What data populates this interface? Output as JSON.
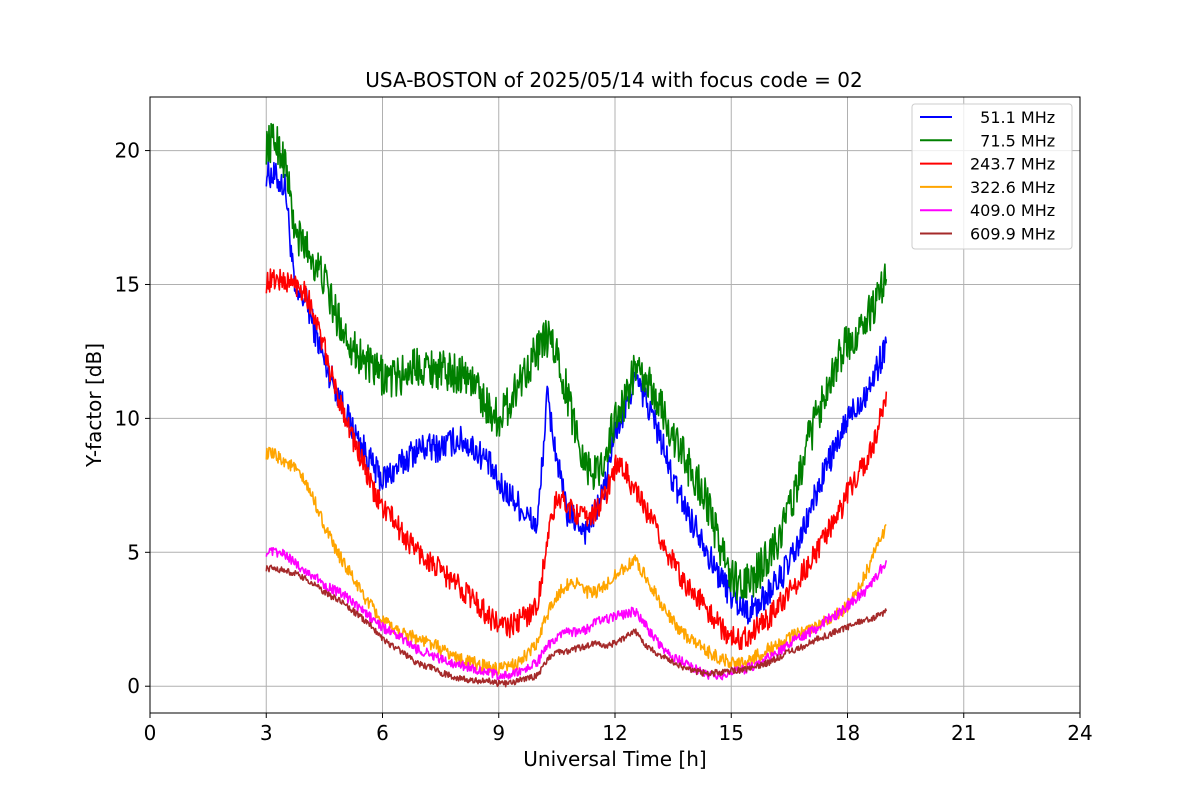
{
  "chart_data": {
    "type": "line",
    "title": "USA-BOSTON of 2025/05/14 with focus code = 02",
    "xlabel": "Universal Time [h]",
    "ylabel": "Y-factor [dB]",
    "xlim": [
      0,
      24
    ],
    "ylim": [
      -1,
      22
    ],
    "xticks": [
      0,
      3,
      6,
      9,
      12,
      15,
      18,
      21,
      24
    ],
    "xtick_labels": [
      "0",
      "3",
      "6",
      "9",
      "12",
      "15",
      "18",
      "21",
      "24"
    ],
    "yticks": [
      0,
      5,
      10,
      15,
      20
    ],
    "ytick_labels": [
      "0",
      "5",
      "10",
      "15",
      "20"
    ],
    "grid": true,
    "legend_position": "top-right",
    "series": [
      {
        "name": "  51.1 MHz",
        "color": "#0000ff",
        "x": [
          3.0,
          3.25,
          3.5,
          3.75,
          4.0,
          4.25,
          4.5,
          4.75,
          5.0,
          5.25,
          5.5,
          5.75,
          6.0,
          6.25,
          6.5,
          6.75,
          7.0,
          7.25,
          7.5,
          7.75,
          8.0,
          8.25,
          8.5,
          8.75,
          9.0,
          9.25,
          9.5,
          9.75,
          10.0,
          10.25,
          10.5,
          10.75,
          11.0,
          11.25,
          11.5,
          11.75,
          12.0,
          12.25,
          12.5,
          12.75,
          13.0,
          13.25,
          13.5,
          13.75,
          14.0,
          14.25,
          14.5,
          14.75,
          15.0,
          15.25,
          15.5,
          15.75,
          16.0,
          16.25,
          16.5,
          16.75,
          17.0,
          17.25,
          17.5,
          17.75,
          18.0,
          18.25,
          18.5,
          18.75,
          19.0
        ],
        "y": [
          19.2,
          19.0,
          18.6,
          14.5,
          14.5,
          13.3,
          12.1,
          11.3,
          10.4,
          9.5,
          8.9,
          8.2,
          7.7,
          8.0,
          8.3,
          8.7,
          8.9,
          8.9,
          8.9,
          9.1,
          9.2,
          9.0,
          8.7,
          8.3,
          7.5,
          7.2,
          6.8,
          6.3,
          6.0,
          10.8,
          8.5,
          6.5,
          6.2,
          5.8,
          6.5,
          7.5,
          9.5,
          10.2,
          11.5,
          10.8,
          10.0,
          8.9,
          7.6,
          6.9,
          6.1,
          5.6,
          4.6,
          4.0,
          3.4,
          3.0,
          2.8,
          3.1,
          3.6,
          4.0,
          4.6,
          5.3,
          6.4,
          7.4,
          8.4,
          9.0,
          10.0,
          10.5,
          11.0,
          11.8,
          12.8
        ]
      },
      {
        "name": "  71.5 MHz",
        "color": "#008000",
        "x": [
          3.0,
          3.25,
          3.5,
          3.75,
          4.0,
          4.25,
          4.5,
          4.75,
          5.0,
          5.25,
          5.5,
          5.75,
          6.0,
          6.25,
          6.5,
          6.75,
          7.0,
          7.25,
          7.5,
          7.75,
          8.0,
          8.25,
          8.5,
          8.75,
          9.0,
          9.25,
          9.5,
          9.75,
          10.0,
          10.25,
          10.5,
          10.75,
          11.0,
          11.25,
          11.5,
          11.75,
          12.0,
          12.25,
          12.5,
          12.75,
          13.0,
          13.25,
          13.5,
          13.75,
          14.0,
          14.25,
          14.5,
          14.75,
          15.0,
          15.25,
          15.5,
          15.75,
          16.0,
          16.25,
          16.5,
          16.75,
          17.0,
          17.25,
          17.5,
          17.75,
          18.0,
          18.25,
          18.5,
          18.75,
          19.0
        ],
        "y": [
          20.2,
          20.4,
          19.5,
          16.8,
          16.5,
          15.8,
          15.2,
          14.0,
          13.3,
          12.6,
          12.2,
          11.8,
          11.6,
          11.5,
          11.6,
          11.9,
          12.0,
          11.9,
          11.8,
          11.7,
          11.7,
          11.5,
          11.0,
          10.3,
          10.0,
          10.5,
          11.3,
          12.0,
          12.5,
          13.0,
          12.4,
          11.0,
          9.5,
          8.3,
          7.9,
          8.6,
          10.0,
          10.6,
          11.8,
          11.4,
          11.0,
          10.2,
          9.3,
          8.6,
          7.9,
          7.4,
          6.2,
          5.1,
          4.1,
          3.7,
          3.9,
          4.4,
          5.0,
          5.6,
          6.7,
          7.7,
          9.2,
          10.2,
          11.4,
          12.2,
          12.8,
          13.1,
          13.8,
          14.3,
          15.2
        ]
      },
      {
        "name": "243.7 MHz",
        "color": "#ff0000",
        "x": [
          3.0,
          3.25,
          3.5,
          3.75,
          4.0,
          4.25,
          4.5,
          4.75,
          5.0,
          5.25,
          5.5,
          5.75,
          6.0,
          6.25,
          6.5,
          6.75,
          7.0,
          7.25,
          7.5,
          7.75,
          8.0,
          8.25,
          8.5,
          8.75,
          9.0,
          9.25,
          9.5,
          9.75,
          10.0,
          10.25,
          10.5,
          10.75,
          11.0,
          11.25,
          11.5,
          11.75,
          12.0,
          12.25,
          12.5,
          12.75,
          13.0,
          13.25,
          13.5,
          13.75,
          14.0,
          14.25,
          14.5,
          14.75,
          15.0,
          15.25,
          15.5,
          15.75,
          16.0,
          16.25,
          16.5,
          16.75,
          17.0,
          17.25,
          17.5,
          17.75,
          18.0,
          18.25,
          18.5,
          18.75,
          19.0
        ],
        "y": [
          15.1,
          15.2,
          15.1,
          15.0,
          14.8,
          13.8,
          12.6,
          11.2,
          10.3,
          9.2,
          8.3,
          7.3,
          6.7,
          6.3,
          5.7,
          5.3,
          4.9,
          4.6,
          4.3,
          4.0,
          3.7,
          3.4,
          3.0,
          2.6,
          2.3,
          2.2,
          2.4,
          2.7,
          3.0,
          5.5,
          7.0,
          6.8,
          6.5,
          6.2,
          6.6,
          7.1,
          8.2,
          8.1,
          7.3,
          6.7,
          6.0,
          5.3,
          4.6,
          4.0,
          3.5,
          3.1,
          2.6,
          2.2,
          1.8,
          1.8,
          2.0,
          2.3,
          2.6,
          3.1,
          3.5,
          4.0,
          4.6,
          5.1,
          5.8,
          6.3,
          7.2,
          7.8,
          8.5,
          9.4,
          11.0
        ]
      },
      {
        "name": "322.6 MHz",
        "color": "#ffa500",
        "x": [
          3.0,
          3.25,
          3.5,
          3.75,
          4.0,
          4.25,
          4.5,
          4.75,
          5.0,
          5.25,
          5.5,
          5.75,
          6.0,
          6.25,
          6.5,
          6.75,
          7.0,
          7.25,
          7.5,
          7.75,
          8.0,
          8.25,
          8.5,
          8.75,
          9.0,
          9.25,
          9.5,
          9.75,
          10.0,
          10.25,
          10.5,
          10.75,
          11.0,
          11.25,
          11.5,
          11.75,
          12.0,
          12.25,
          12.5,
          12.75,
          13.0,
          13.25,
          13.5,
          13.75,
          14.0,
          14.25,
          14.5,
          14.75,
          15.0,
          15.25,
          15.5,
          15.75,
          16.0,
          16.25,
          16.5,
          16.75,
          17.0,
          17.25,
          17.5,
          17.75,
          18.0,
          18.25,
          18.5,
          18.75,
          19.0
        ],
        "y": [
          8.7,
          8.6,
          8.4,
          8.1,
          7.6,
          6.9,
          6.0,
          5.2,
          4.6,
          4.0,
          3.4,
          2.9,
          2.4,
          2.2,
          2.0,
          1.9,
          1.7,
          1.6,
          1.4,
          1.2,
          1.0,
          0.9,
          0.8,
          0.7,
          0.6,
          0.7,
          0.9,
          1.2,
          1.6,
          2.7,
          3.4,
          3.8,
          3.9,
          3.5,
          3.5,
          3.7,
          4.2,
          4.4,
          4.7,
          4.2,
          3.6,
          2.9,
          2.4,
          2.0,
          1.7,
          1.4,
          1.2,
          1.0,
          0.9,
          0.9,
          1.0,
          1.2,
          1.4,
          1.6,
          1.8,
          2.0,
          2.2,
          2.3,
          2.5,
          2.7,
          3.0,
          3.6,
          4.3,
          5.2,
          6.0
        ]
      },
      {
        "name": "409.0 MHz",
        "color": "#ff00ff",
        "x": [
          3.0,
          3.25,
          3.5,
          3.75,
          4.0,
          4.25,
          4.5,
          4.75,
          5.0,
          5.25,
          5.5,
          5.75,
          6.0,
          6.25,
          6.5,
          6.75,
          7.0,
          7.25,
          7.5,
          7.75,
          8.0,
          8.25,
          8.5,
          8.75,
          9.0,
          9.25,
          9.5,
          9.75,
          10.0,
          10.25,
          10.5,
          10.75,
          11.0,
          11.25,
          11.5,
          11.75,
          12.0,
          12.25,
          12.5,
          12.75,
          13.0,
          13.25,
          13.5,
          13.75,
          14.0,
          14.25,
          14.5,
          14.75,
          15.0,
          15.25,
          15.5,
          15.75,
          16.0,
          16.25,
          16.5,
          16.75,
          17.0,
          17.25,
          17.5,
          17.75,
          18.0,
          18.25,
          18.5,
          18.75,
          19.0
        ],
        "y": [
          5.0,
          5.0,
          4.9,
          4.6,
          4.3,
          4.1,
          3.8,
          3.6,
          3.4,
          3.1,
          2.8,
          2.5,
          2.2,
          2.0,
          1.8,
          1.5,
          1.3,
          1.2,
          1.0,
          0.9,
          0.8,
          0.7,
          0.6,
          0.5,
          0.4,
          0.4,
          0.5,
          0.7,
          0.9,
          1.5,
          1.8,
          2.0,
          2.0,
          2.1,
          2.4,
          2.5,
          2.6,
          2.7,
          2.8,
          2.4,
          1.8,
          1.4,
          1.1,
          0.9,
          0.7,
          0.5,
          0.4,
          0.4,
          0.5,
          0.6,
          0.7,
          0.9,
          1.1,
          1.3,
          1.6,
          1.8,
          2.0,
          2.2,
          2.5,
          2.7,
          3.0,
          3.3,
          3.6,
          4.1,
          4.7
        ]
      },
      {
        "name": "609.9 MHz",
        "color": "#a52a2a",
        "x": [
          3.0,
          3.25,
          3.5,
          3.75,
          4.0,
          4.25,
          4.5,
          4.75,
          5.0,
          5.25,
          5.5,
          5.75,
          6.0,
          6.25,
          6.5,
          6.75,
          7.0,
          7.25,
          7.5,
          7.75,
          8.0,
          8.25,
          8.5,
          8.75,
          9.0,
          9.25,
          9.5,
          9.75,
          10.0,
          10.25,
          10.5,
          10.75,
          11.0,
          11.25,
          11.5,
          11.75,
          12.0,
          12.25,
          12.5,
          12.75,
          13.0,
          13.25,
          13.5,
          13.75,
          14.0,
          14.25,
          14.5,
          14.75,
          15.0,
          15.25,
          15.5,
          15.75,
          16.0,
          16.25,
          16.5,
          16.75,
          17.0,
          17.25,
          17.5,
          17.75,
          18.0,
          18.25,
          18.5,
          18.75,
          19.0
        ],
        "y": [
          4.4,
          4.4,
          4.3,
          4.2,
          4.0,
          3.8,
          3.5,
          3.3,
          3.1,
          2.8,
          2.5,
          2.2,
          1.8,
          1.5,
          1.3,
          1.0,
          0.8,
          0.7,
          0.5,
          0.4,
          0.3,
          0.2,
          0.2,
          0.2,
          0.1,
          0.1,
          0.2,
          0.3,
          0.4,
          1.0,
          1.3,
          1.3,
          1.4,
          1.5,
          1.6,
          1.5,
          1.6,
          1.8,
          2.1,
          1.6,
          1.3,
          1.1,
          0.9,
          0.7,
          0.6,
          0.5,
          0.5,
          0.5,
          0.6,
          0.6,
          0.7,
          0.8,
          0.9,
          1.1,
          1.3,
          1.4,
          1.6,
          1.8,
          1.9,
          2.1,
          2.2,
          2.4,
          2.5,
          2.6,
          2.8
        ]
      }
    ]
  }
}
